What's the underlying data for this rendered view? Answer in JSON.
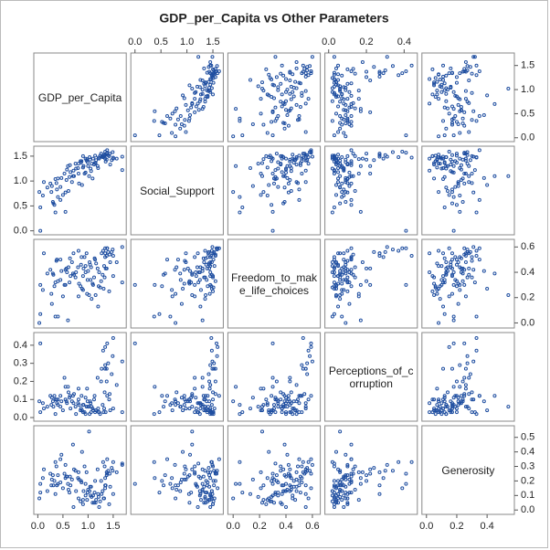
{
  "chart_data": {
    "type": "scatter_matrix",
    "title": "GDP_per_Capita vs Other Parameters",
    "color": "#1f4ea0",
    "variables": [
      {
        "name": "GDP_per_Capita",
        "lim": [
          -0.08,
          1.76
        ],
        "xticks": [
          {
            "value": 0,
            "label": "0.0"
          },
          0.5,
          {
            "value": 1,
            "label": "1.0"
          },
          1.5
        ],
        "yticks": [
          {
            "value": 0,
            "label": "0.0"
          },
          0.5,
          {
            "value": 1,
            "label": "1.0"
          },
          1.5
        ],
        "values": [
          1.34,
          1.38,
          1.49,
          1.38,
          1.4,
          1.68,
          1.3,
          1.47,
          1.37,
          1.5,
          1.34,
          1.37,
          1.04,
          1.43,
          1.33,
          1.44,
          1.57,
          1.34,
          1.5,
          1.27,
          1.68,
          1.31,
          0.91,
          1.35,
          0.97,
          1.32,
          1.29,
          1.16,
          0.86,
          1.0,
          1.1,
          1.21,
          0.8,
          1.12,
          1.24,
          0.93,
          1.42,
          1.03,
          1.13,
          0.7,
          1.05,
          0.87,
          1.07,
          0.58,
          1.15,
          0.95,
          0.75,
          1.2,
          0.81,
          0.68,
          1.09,
          0.9,
          0.99,
          0.55,
          0.82,
          0.38,
          0.64,
          1.06,
          0.95,
          0.4,
          0.33,
          0.57,
          0.45,
          0.72,
          0.35,
          0.27,
          0.19,
          0.3,
          0.1,
          0.5,
          0.61,
          0.05,
          0.03,
          0.37,
          0.31,
          0.35,
          0.55,
          0.25,
          0.05,
          0.53,
          0.88,
          0.71,
          0.4,
          0.12,
          0.6,
          0.9,
          0.28,
          0.81,
          1.02,
          0.45,
          0.98,
          1.14,
          0.76,
          0.65,
          1.22,
          0.85,
          0.47,
          1.19,
          0.63,
          1.26
        ]
      },
      {
        "name": "Social_Support",
        "lim": [
          -0.08,
          1.7
        ],
        "xticks": [
          {
            "value": 0,
            "label": "0.0"
          },
          0.5,
          {
            "value": 1,
            "label": "1.0"
          },
          1.5
        ],
        "yticks": [
          {
            "value": 0,
            "label": "0.0"
          },
          0.5,
          {
            "value": 1,
            "label": "1.0"
          },
          1.5
        ],
        "values": [
          1.59,
          1.57,
          1.58,
          1.62,
          1.52,
          1.49,
          1.48,
          1.42,
          1.55,
          1.47,
          1.45,
          1.43,
          1.43,
          1.55,
          1.5,
          1.33,
          1.45,
          1.52,
          1.45,
          1.49,
          1.22,
          1.48,
          1.3,
          1.39,
          1.41,
          1.53,
          1.48,
          1.42,
          1.37,
          1.3,
          1.45,
          1.47,
          1.26,
          1.33,
          1.51,
          1.15,
          1.5,
          1.48,
          1.36,
          1.1,
          1.25,
          1.4,
          1.35,
          1.23,
          1.36,
          1.17,
          1.35,
          1.26,
          1.15,
          0.98,
          1.05,
          1.27,
          1.38,
          0.77,
          0.95,
          0.83,
          1.32,
          1.2,
          1.45,
          1.05,
          0.52,
          1.02,
          0.88,
          1.1,
          1.04,
          0.78,
          0.87,
          0.58,
          0.71,
          0.72,
          0.8,
          0.47,
          0.78,
          0.96,
          0.55,
          0.37,
          0.38,
          0.95,
          0.0,
          1.15,
          0.92,
          1.21,
          0.68,
          0.98,
          1.3,
          1.5,
          0.9,
          1.35,
          1.1,
          0.62,
          1.44,
          1.51,
          1.25,
          1.18,
          1.45,
          1.4,
          1.06,
          1.3,
          1.08,
          1.55
        ]
      },
      {
        "name": "Freedom_to_make_life_choices",
        "lim": [
          -0.04,
          0.66
        ],
        "xticks": [
          {
            "value": 0,
            "label": "0.0"
          },
          0.2,
          0.4,
          0.6
        ],
        "yticks": [
          {
            "value": 0,
            "label": "0.0"
          },
          0.2,
          0.4,
          0.6
        ],
        "values": [
          0.59,
          0.59,
          0.58,
          0.59,
          0.56,
          0.6,
          0.57,
          0.56,
          0.53,
          0.53,
          0.52,
          0.43,
          0.46,
          0.54,
          0.36,
          0.48,
          0.48,
          0.55,
          0.37,
          0.55,
          0.32,
          0.27,
          0.43,
          0.43,
          0.55,
          0.45,
          0.38,
          0.47,
          0.46,
          0.41,
          0.3,
          0.29,
          0.44,
          0.36,
          0.28,
          0.52,
          0.25,
          0.48,
          0.51,
          0.39,
          0.34,
          0.52,
          0.19,
          0.4,
          0.22,
          0.4,
          0.36,
          0.13,
          0.21,
          0.48,
          0.31,
          0.26,
          0.34,
          0.42,
          0.31,
          0.5,
          0.51,
          0.44,
          0.45,
          0.33,
          0.29,
          0.43,
          0.34,
          0.38,
          0.32,
          0.23,
          0.39,
          0.39,
          0.26,
          0.21,
          0.44,
          0.07,
          0.0,
          0.49,
          0.38,
          0.05,
          0.3,
          0.42,
          0.3,
          0.3,
          0.27,
          0.55,
          0.05,
          0.55,
          0.02,
          0.37,
          0.15,
          0.57,
          0.22,
          0.5,
          0.23,
          0.5,
          0.4,
          0.37,
          0.4,
          0.29,
          0.41,
          0.43,
          0.32,
          0.33
        ]
      },
      {
        "name": "Perceptions_of_corruption",
        "lim": [
          -0.02,
          0.47
        ],
        "xticks": [
          {
            "value": 0,
            "label": "0.0"
          },
          0.2,
          0.4
        ],
        "yticks": [
          {
            "value": 0,
            "label": "0.0"
          },
          0.1,
          0.2,
          0.3,
          0.4
        ],
        "values": [
          0.39,
          0.41,
          0.34,
          0.12,
          0.3,
          0.31,
          0.37,
          0.24,
          0.27,
          0.44,
          0.29,
          0.2,
          0.09,
          0.13,
          0.14,
          0.04,
          0.18,
          0.27,
          0.05,
          0.27,
          0.03,
          0.03,
          0.07,
          0.03,
          0.06,
          0.05,
          0.07,
          0.04,
          0.05,
          0.06,
          0.04,
          0.03,
          0.08,
          0.1,
          0.02,
          0.03,
          0.1,
          0.02,
          0.12,
          0.12,
          0.08,
          0.12,
          0.06,
          0.08,
          0.04,
          0.11,
          0.06,
          0.05,
          0.16,
          0.09,
          0.05,
          0.07,
          0.09,
          0.1,
          0.07,
          0.08,
          0.12,
          0.03,
          0.02,
          0.1,
          0.12,
          0.09,
          0.06,
          0.13,
          0.1,
          0.07,
          0.06,
          0.09,
          0.08,
          0.04,
          0.14,
          0.03,
          0.09,
          0.1,
          0.06,
          0.02,
          0.17,
          0.12,
          0.41,
          0.22,
          0.04,
          0.08,
          0.07,
          0.05,
          0.17,
          0.03,
          0.11,
          0.1,
          0.06,
          0.12,
          0.16,
          0.03,
          0.02,
          0.05,
          0.03,
          0.04,
          0.09,
          0.22,
          0.11,
          0.2
        ]
      },
      {
        "name": "Generosity",
        "lim": [
          -0.03,
          0.58
        ],
        "xticks": [
          {
            "value": 0,
            "label": "0.0"
          },
          0.2,
          0.4
        ],
        "yticks": [
          {
            "value": 0,
            "label": "0.0"
          },
          0.1,
          0.2,
          0.3,
          0.4,
          0.5
        ],
        "values": [
          0.15,
          0.25,
          0.27,
          0.35,
          0.27,
          0.31,
          0.33,
          0.29,
          0.26,
          0.33,
          0.22,
          0.24,
          0.16,
          0.25,
          0.3,
          0.16,
          0.26,
          0.17,
          0.11,
          0.11,
          0.32,
          0.08,
          0.13,
          0.17,
          0.26,
          0.08,
          0.13,
          0.07,
          0.2,
          0.14,
          0.1,
          0.09,
          0.22,
          0.05,
          0.06,
          0.3,
          0.04,
          0.13,
          0.12,
          0.45,
          0.1,
          0.19,
          0.09,
          0.23,
          0.05,
          0.18,
          0.27,
          0.11,
          0.26,
          0.21,
          0.05,
          0.07,
          0.12,
          0.31,
          0.21,
          0.17,
          0.23,
          0.16,
          0.1,
          0.24,
          0.2,
          0.23,
          0.19,
          0.28,
          0.11,
          0.17,
          0.13,
          0.24,
          0.22,
          0.15,
          0.14,
          0.12,
          0.08,
          0.3,
          0.17,
          0.33,
          0.22,
          0.25,
          0.18,
          0.25,
          0.4,
          0.02,
          0.18,
          0.28,
          0.18,
          0.04,
          0.21,
          0.08,
          0.54,
          0.35,
          0.07,
          0.2,
          0.13,
          0.17,
          0.02,
          0.06,
          0.38,
          0.28,
          0.12,
          0.2
        ]
      }
    ]
  }
}
